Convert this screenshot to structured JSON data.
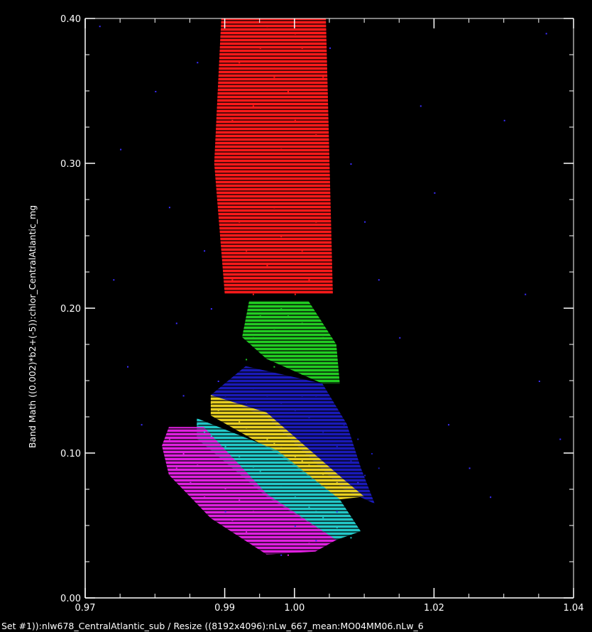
{
  "chart_data": {
    "type": "scatter",
    "title": "",
    "xlabel": "Set #1)):nlw678_CentralAtlantic_sub / Resize ((8192x4096):nLw_667_mean:MO04MM06.nLw_6",
    "ylabel": "Band Math ((0.002)*b2+(-5)):chlor_CentralAtlantic_mg",
    "xlim": [
      0.97,
      1.04
    ],
    "ylim": [
      0.0,
      0.4
    ],
    "x_ticks": [
      {
        "value": 0.97,
        "label": "0.97"
      },
      {
        "value": 0.99,
        "label": "0.99"
      },
      {
        "value": 1.0,
        "label": "1.00"
      },
      {
        "value": 1.02,
        "label": "1.02"
      },
      {
        "value": 1.04,
        "label": "1.04"
      }
    ],
    "y_ticks": [
      {
        "value": 0.0,
        "label": "0.00"
      },
      {
        "value": 0.1,
        "label": "0.10"
      },
      {
        "value": 0.2,
        "label": "0.20"
      },
      {
        "value": 0.3,
        "label": "0.30"
      },
      {
        "value": 0.4,
        "label": "0.40"
      }
    ],
    "grid": false,
    "background_color": "#000000",
    "axis_color": "#ffffff",
    "series": [
      {
        "color": "#3a2cff",
        "points": [
          [
            0.972,
            0.395
          ],
          [
            0.975,
            0.31
          ],
          [
            0.974,
            0.22
          ],
          [
            0.976,
            0.16
          ],
          [
            0.978,
            0.12
          ],
          [
            0.98,
            0.35
          ],
          [
            0.982,
            0.27
          ],
          [
            0.983,
            0.19
          ],
          [
            0.984,
            0.14
          ],
          [
            0.985,
            0.08
          ],
          [
            0.986,
            0.37
          ],
          [
            0.987,
            0.24
          ],
          [
            0.988,
            0.2
          ],
          [
            0.989,
            0.15
          ],
          [
            0.99,
            0.06
          ],
          [
            1.005,
            0.38
          ],
          [
            1.008,
            0.3
          ],
          [
            1.01,
            0.26
          ],
          [
            1.012,
            0.22
          ],
          [
            1.015,
            0.18
          ],
          [
            1.018,
            0.34
          ],
          [
            1.02,
            0.28
          ],
          [
            1.022,
            0.12
          ],
          [
            1.025,
            0.09
          ],
          [
            1.028,
            0.07
          ],
          [
            1.03,
            0.33
          ],
          [
            1.033,
            0.21
          ],
          [
            1.035,
            0.15
          ],
          [
            1.038,
            0.11
          ],
          [
            1.036,
            0.39
          ],
          [
            1.0,
            0.05
          ],
          [
            1.003,
            0.04
          ],
          [
            0.998,
            0.03
          ],
          [
            1.006,
            0.06
          ],
          [
            1.009,
            0.08
          ]
        ]
      },
      {
        "color": "#ff1a1a",
        "points": [
          [
            0.991,
            0.22
          ],
          [
            0.992,
            0.26
          ],
          [
            0.993,
            0.3
          ],
          [
            0.994,
            0.34
          ],
          [
            0.995,
            0.38
          ],
          [
            0.996,
            0.23
          ],
          [
            0.997,
            0.27
          ],
          [
            0.998,
            0.31
          ],
          [
            0.999,
            0.35
          ],
          [
            1.0,
            0.39
          ],
          [
            1.001,
            0.24
          ],
          [
            1.002,
            0.28
          ],
          [
            1.003,
            0.32
          ],
          [
            1.004,
            0.36
          ],
          [
            0.992,
            0.37
          ],
          [
            0.994,
            0.21
          ],
          [
            0.996,
            0.29
          ],
          [
            0.998,
            0.25
          ],
          [
            1.0,
            0.33
          ],
          [
            1.002,
            0.22
          ],
          [
            0.993,
            0.24
          ],
          [
            0.995,
            0.28
          ],
          [
            0.997,
            0.36
          ],
          [
            0.999,
            0.3
          ],
          [
            1.001,
            0.38
          ],
          [
            1.003,
            0.26
          ],
          [
            0.991,
            0.33
          ],
          [
            1.004,
            0.3
          ],
          [
            0.996,
            0.395
          ],
          [
            1.0,
            0.21
          ]
        ]
      },
      {
        "color": "#22cc22",
        "points": [
          [
            0.993,
            0.165
          ],
          [
            0.994,
            0.18
          ],
          [
            0.995,
            0.195
          ],
          [
            0.996,
            0.17
          ],
          [
            0.997,
            0.185
          ],
          [
            0.998,
            0.2
          ],
          [
            0.999,
            0.175
          ],
          [
            1.0,
            0.16
          ],
          [
            1.001,
            0.19
          ],
          [
            1.002,
            0.17
          ],
          [
            1.003,
            0.155
          ],
          [
            1.004,
            0.18
          ],
          [
            1.005,
            0.165
          ],
          [
            1.006,
            0.15
          ],
          [
            0.995,
            0.17
          ],
          [
            0.997,
            0.16
          ],
          [
            0.999,
            0.195
          ],
          [
            1.001,
            0.155
          ],
          [
            1.003,
            0.175
          ],
          [
            1.005,
            0.16
          ]
        ]
      },
      {
        "color": "#1a1ab8",
        "points": [
          [
            0.99,
            0.14
          ],
          [
            0.992,
            0.15
          ],
          [
            0.994,
            0.145
          ],
          [
            0.996,
            0.14
          ],
          [
            0.998,
            0.135
          ],
          [
            1.0,
            0.13
          ],
          [
            1.002,
            0.125
          ],
          [
            1.004,
            0.115
          ],
          [
            1.006,
            0.105
          ],
          [
            1.008,
            0.095
          ],
          [
            1.01,
            0.085
          ],
          [
            0.995,
            0.155
          ],
          [
            0.999,
            0.15
          ],
          [
            1.003,
            0.14
          ],
          [
            1.007,
            0.12
          ],
          [
            1.009,
            0.11
          ],
          [
            1.011,
            0.1
          ],
          [
            1.012,
            0.09
          ],
          [
            0.993,
            0.135
          ],
          [
            1.001,
            0.14
          ]
        ]
      },
      {
        "color": "#e8d020",
        "points": [
          [
            0.988,
            0.135
          ],
          [
            0.99,
            0.128
          ],
          [
            0.992,
            0.122
          ],
          [
            0.994,
            0.116
          ],
          [
            0.996,
            0.11
          ],
          [
            0.998,
            0.104
          ],
          [
            1.0,
            0.098
          ],
          [
            1.002,
            0.092
          ],
          [
            1.004,
            0.086
          ],
          [
            1.006,
            0.08
          ],
          [
            1.008,
            0.074
          ],
          [
            0.989,
            0.13
          ],
          [
            0.993,
            0.118
          ],
          [
            0.997,
            0.107
          ],
          [
            1.001,
            0.095
          ]
        ]
      },
      {
        "color": "#22c8c8",
        "points": [
          [
            0.986,
            0.12
          ],
          [
            0.988,
            0.112
          ],
          [
            0.99,
            0.105
          ],
          [
            0.992,
            0.098
          ],
          [
            0.994,
            0.091
          ],
          [
            0.996,
            0.084
          ],
          [
            0.998,
            0.077
          ],
          [
            1.0,
            0.07
          ],
          [
            1.002,
            0.063
          ],
          [
            1.004,
            0.056
          ],
          [
            1.006,
            0.049
          ],
          [
            1.008,
            0.042
          ],
          [
            0.987,
            0.115
          ],
          [
            0.991,
            0.101
          ],
          [
            0.995,
            0.088
          ],
          [
            0.999,
            0.074
          ],
          [
            1.003,
            0.06
          ],
          [
            1.007,
            0.045
          ]
        ]
      },
      {
        "color": "#e020e0",
        "points": [
          [
            0.982,
            0.11
          ],
          [
            0.984,
            0.1
          ],
          [
            0.986,
            0.092
          ],
          [
            0.988,
            0.084
          ],
          [
            0.99,
            0.076
          ],
          [
            0.992,
            0.068
          ],
          [
            0.994,
            0.06
          ],
          [
            0.996,
            0.052
          ],
          [
            0.998,
            0.045
          ],
          [
            1.0,
            0.04
          ],
          [
            1.002,
            0.038
          ],
          [
            0.983,
            0.09
          ],
          [
            0.985,
            0.08
          ],
          [
            0.987,
            0.07
          ],
          [
            0.989,
            0.062
          ],
          [
            0.991,
            0.054
          ],
          [
            0.993,
            0.046
          ],
          [
            0.995,
            0.04
          ],
          [
            0.997,
            0.035
          ],
          [
            0.999,
            0.03
          ]
        ]
      }
    ],
    "bands": [
      {
        "color": "#ff1a1a",
        "polygon": [
          [
            0.9895,
            0.4
          ],
          [
            1.0045,
            0.4
          ],
          [
            1.0055,
            0.21
          ],
          [
            0.99,
            0.21
          ],
          [
            0.9885,
            0.3
          ]
        ]
      },
      {
        "color": "#22cc22",
        "polygon": [
          [
            0.9935,
            0.205
          ],
          [
            1.002,
            0.205
          ],
          [
            1.006,
            0.175
          ],
          [
            1.0065,
            0.148
          ],
          [
            1.004,
            0.148
          ],
          [
            0.996,
            0.165
          ],
          [
            0.9925,
            0.18
          ]
        ]
      },
      {
        "color": "#1a1ab8",
        "polygon": [
          [
            0.993,
            0.16
          ],
          [
            1.004,
            0.148
          ],
          [
            1.0075,
            0.12
          ],
          [
            1.0095,
            0.09
          ],
          [
            1.0115,
            0.065
          ],
          [
            1.007,
            0.075
          ],
          [
            0.996,
            0.125
          ],
          [
            0.988,
            0.14
          ]
        ]
      },
      {
        "color": "#e8d020",
        "polygon": [
          [
            0.988,
            0.14
          ],
          [
            0.996,
            0.128
          ],
          [
            1.007,
            0.082
          ],
          [
            1.01,
            0.07
          ],
          [
            1.0065,
            0.068
          ],
          [
            0.9975,
            0.1
          ],
          [
            0.988,
            0.126
          ]
        ]
      },
      {
        "color": "#22c8c8",
        "polygon": [
          [
            0.986,
            0.124
          ],
          [
            0.9975,
            0.102
          ],
          [
            1.0065,
            0.068
          ],
          [
            1.0095,
            0.046
          ],
          [
            1.006,
            0.04
          ],
          [
            0.996,
            0.07
          ],
          [
            0.986,
            0.11
          ]
        ]
      },
      {
        "color": "#e020e0",
        "polygon": [
          [
            0.982,
            0.118
          ],
          [
            0.987,
            0.118
          ],
          [
            0.996,
            0.072
          ],
          [
            1.006,
            0.04
          ],
          [
            1.003,
            0.032
          ],
          [
            0.996,
            0.03
          ],
          [
            0.988,
            0.055
          ],
          [
            0.982,
            0.085
          ],
          [
            0.981,
            0.105
          ]
        ]
      }
    ]
  }
}
